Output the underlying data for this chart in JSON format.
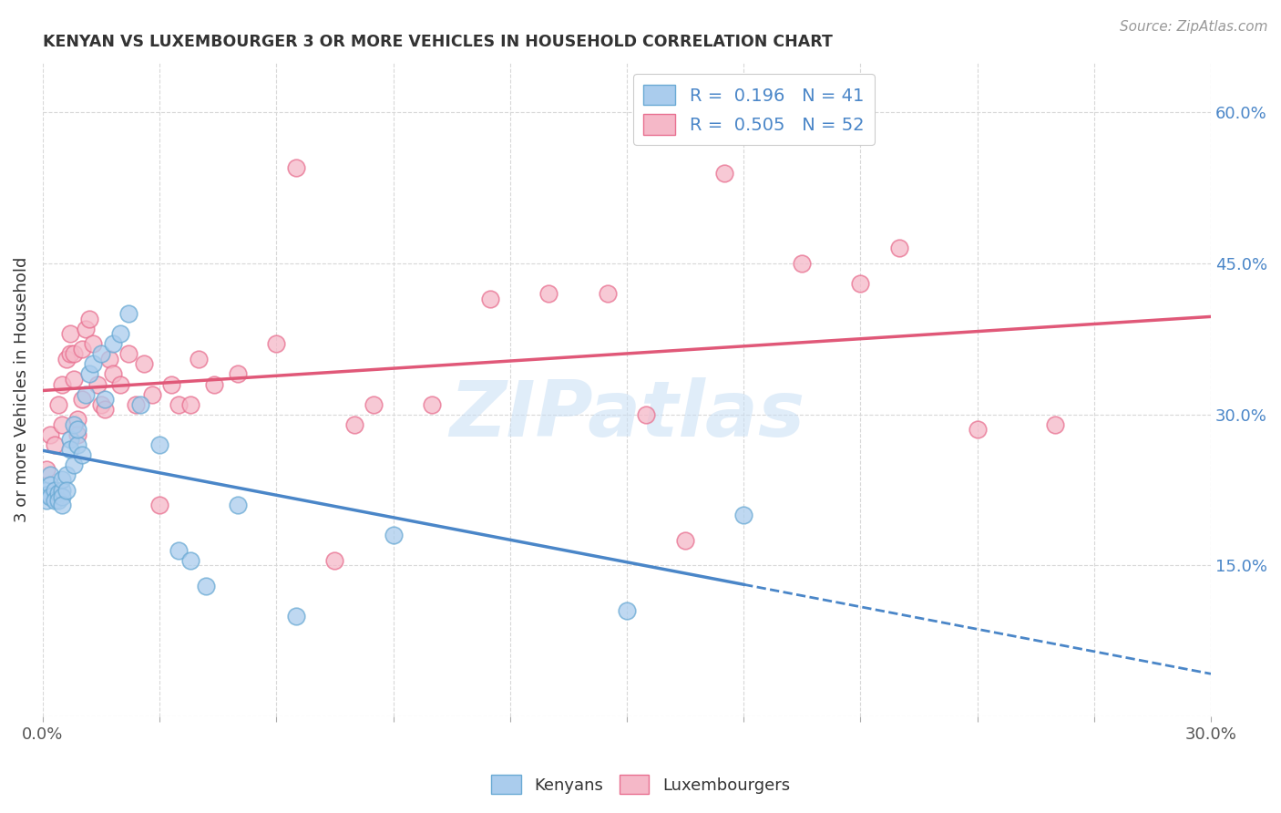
{
  "title": "KENYAN VS LUXEMBOURGER 3 OR MORE VEHICLES IN HOUSEHOLD CORRELATION CHART",
  "source": "Source: ZipAtlas.com",
  "ylabel": "3 or more Vehicles in Household",
  "x_min": 0.0,
  "x_max": 0.3,
  "y_min": 0.0,
  "y_max": 0.65,
  "x_ticks": [
    0.0,
    0.03,
    0.06,
    0.09,
    0.12,
    0.15,
    0.18,
    0.21,
    0.24,
    0.27,
    0.3
  ],
  "y_ticks_right": [
    0.15,
    0.3,
    0.45,
    0.6
  ],
  "y_tick_labels_right": [
    "15.0%",
    "30.0%",
    "45.0%",
    "60.0%"
  ],
  "kenyan_color": "#aacced",
  "luxembourger_color": "#f5b8c8",
  "kenyan_edge_color": "#6aaad4",
  "luxembourger_edge_color": "#e87090",
  "kenyan_line_color": "#4a86c8",
  "luxembourger_line_color": "#e05878",
  "legend_R_kenyan": "0.196",
  "legend_N_kenyan": "41",
  "legend_R_luxembourger": "0.505",
  "legend_N_luxembourger": "52",
  "kenyan_x": [
    0.001,
    0.001,
    0.001,
    0.002,
    0.002,
    0.002,
    0.003,
    0.003,
    0.004,
    0.004,
    0.005,
    0.005,
    0.005,
    0.005,
    0.006,
    0.006,
    0.007,
    0.007,
    0.008,
    0.008,
    0.009,
    0.009,
    0.01,
    0.011,
    0.012,
    0.013,
    0.015,
    0.016,
    0.018,
    0.02,
    0.022,
    0.025,
    0.03,
    0.035,
    0.038,
    0.042,
    0.05,
    0.065,
    0.09,
    0.15,
    0.18
  ],
  "kenyan_y": [
    0.225,
    0.22,
    0.215,
    0.24,
    0.23,
    0.218,
    0.225,
    0.215,
    0.222,
    0.215,
    0.225,
    0.235,
    0.218,
    0.21,
    0.24,
    0.225,
    0.275,
    0.265,
    0.29,
    0.25,
    0.27,
    0.285,
    0.26,
    0.32,
    0.34,
    0.35,
    0.36,
    0.315,
    0.37,
    0.38,
    0.4,
    0.31,
    0.27,
    0.165,
    0.155,
    0.13,
    0.21,
    0.1,
    0.18,
    0.105,
    0.2
  ],
  "luxembourger_x": [
    0.001,
    0.002,
    0.003,
    0.004,
    0.005,
    0.005,
    0.006,
    0.007,
    0.007,
    0.008,
    0.008,
    0.009,
    0.009,
    0.01,
    0.01,
    0.011,
    0.012,
    0.013,
    0.014,
    0.015,
    0.016,
    0.017,
    0.018,
    0.02,
    0.022,
    0.024,
    0.026,
    0.028,
    0.03,
    0.033,
    0.035,
    0.038,
    0.04,
    0.044,
    0.05,
    0.06,
    0.065,
    0.075,
    0.08,
    0.085,
    0.1,
    0.115,
    0.13,
    0.145,
    0.155,
    0.165,
    0.175,
    0.195,
    0.21,
    0.22,
    0.24,
    0.26
  ],
  "luxembourger_y": [
    0.245,
    0.28,
    0.27,
    0.31,
    0.29,
    0.33,
    0.355,
    0.36,
    0.38,
    0.335,
    0.36,
    0.295,
    0.28,
    0.315,
    0.365,
    0.385,
    0.395,
    0.37,
    0.33,
    0.31,
    0.305,
    0.355,
    0.34,
    0.33,
    0.36,
    0.31,
    0.35,
    0.32,
    0.21,
    0.33,
    0.31,
    0.31,
    0.355,
    0.33,
    0.34,
    0.37,
    0.545,
    0.155,
    0.29,
    0.31,
    0.31,
    0.415,
    0.42,
    0.42,
    0.3,
    0.175,
    0.54,
    0.45,
    0.43,
    0.465,
    0.285,
    0.29
  ],
  "watermark_text": "ZIPatlas",
  "watermark_color": "#c8dff5",
  "background_color": "#ffffff",
  "grid_color": "#d8d8d8",
  "label_color": "#333333",
  "right_axis_color": "#4a86c8",
  "title_color": "#333333",
  "source_color": "#999999"
}
